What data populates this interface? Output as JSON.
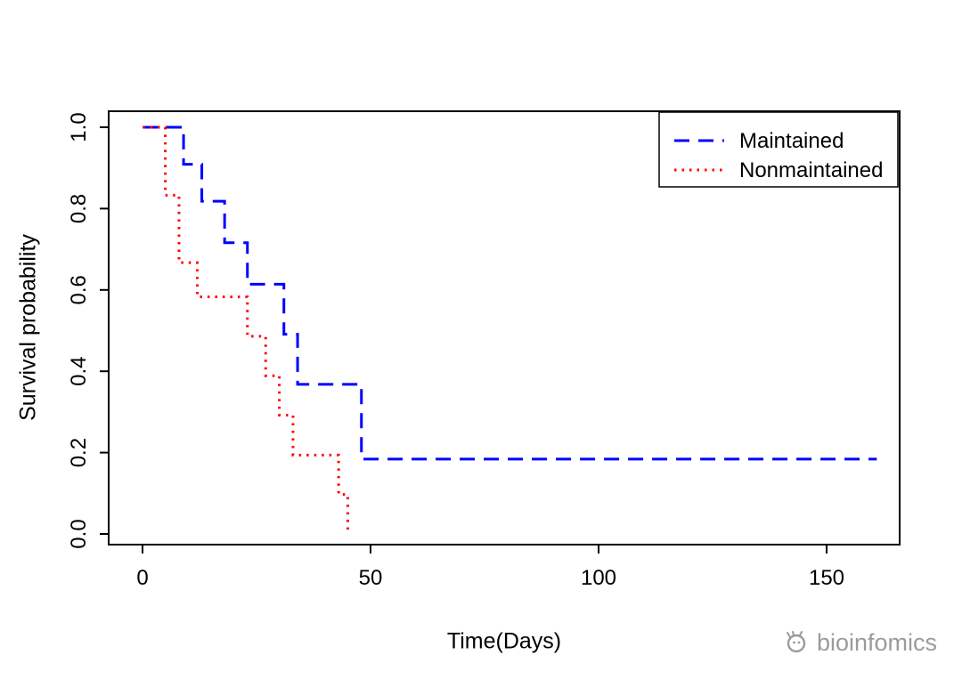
{
  "chart_data": {
    "type": "line",
    "subtype": "kaplan-meier-step",
    "title": "",
    "xlabel": "Time(Days)",
    "ylabel": "Survival probability",
    "xlim": [
      0,
      166
    ],
    "ylim": [
      0,
      1.0
    ],
    "xticks": [
      0,
      50,
      100,
      150
    ],
    "xtick_labels": [
      "0",
      "50",
      "100",
      "150"
    ],
    "yticks": [
      0.0,
      0.2,
      0.4,
      0.6,
      0.8,
      1.0
    ],
    "ytick_labels": [
      "0.0",
      "0.2",
      "0.4",
      "0.6",
      "0.8",
      "1.0"
    ],
    "grid": false,
    "axis_color": "#000000",
    "legend_position": "top-right",
    "series": [
      {
        "name": "Maintained",
        "color": "#0000ff",
        "dash": "dashed",
        "x": [
          0,
          9,
          13,
          18,
          23,
          31,
          34,
          48,
          161
        ],
        "y": [
          1.0,
          0.909,
          0.818,
          0.716,
          0.614,
          0.491,
          0.368,
          0.184,
          0.184
        ]
      },
      {
        "name": "Nonmaintained",
        "color": "#ff0000",
        "dash": "dotted",
        "x": [
          0,
          5,
          8,
          12,
          23,
          27,
          30,
          33,
          43,
          45
        ],
        "y": [
          1.0,
          0.833,
          0.667,
          0.583,
          0.486,
          0.389,
          0.292,
          0.194,
          0.097,
          0.0
        ]
      }
    ]
  },
  "watermark": {
    "text": "bioinfomics",
    "color": "#9b9b9b"
  }
}
